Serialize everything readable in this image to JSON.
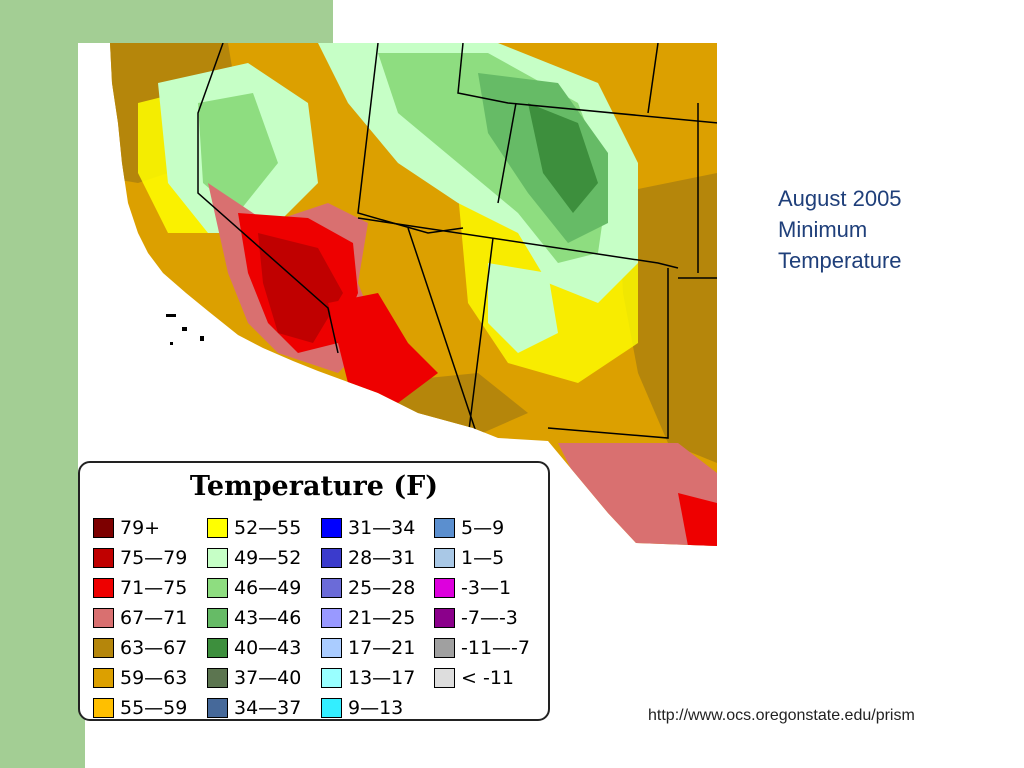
{
  "caption": {
    "line1": "August 2005",
    "line2": "Minimum",
    "line3": "Temperature"
  },
  "legend": {
    "title": "Temperature (F)",
    "columns": [
      [
        {
          "label": "79+",
          "color": "#7d0000"
        },
        {
          "label": "75—79",
          "color": "#c00000"
        },
        {
          "label": "71—75",
          "color": "#ee0000"
        },
        {
          "label": "67—71",
          "color": "#d97070"
        },
        {
          "label": "63—67",
          "color": "#b5860b"
        },
        {
          "label": "59—63",
          "color": "#dca000"
        },
        {
          "label": "55—59",
          "color": "#ffbf00"
        }
      ],
      [
        {
          "label": "52—55",
          "color": "#ffff00"
        },
        {
          "label": "49—52",
          "color": "#c6ffc6"
        },
        {
          "label": "46—49",
          "color": "#8edd80"
        },
        {
          "label": "43—46",
          "color": "#66bb66"
        },
        {
          "label": "40—43",
          "color": "#3d8f3d"
        },
        {
          "label": "37—40",
          "color": "#5c7550"
        },
        {
          "label": "34—37",
          "color": "#46699a"
        }
      ],
      [
        {
          "label": "31—34",
          "color": "#0000ff"
        },
        {
          "label": "28—31",
          "color": "#3b3bcc"
        },
        {
          "label": "25—28",
          "color": "#6b6bd8"
        },
        {
          "label": "21—25",
          "color": "#9999ff"
        },
        {
          "label": "17—21",
          "color": "#aaccff"
        },
        {
          "label": "13—17",
          "color": "#99ffff"
        },
        {
          "label": "9—13",
          "color": "#33eeff"
        }
      ],
      [
        {
          "label": "5—9",
          "color": "#5b8fcf"
        },
        {
          "label": "1—5",
          "color": "#a9c8e6"
        },
        {
          "label": "-3—1",
          "color": "#dd00dd"
        },
        {
          "label": "-7—-3",
          "color": "#8b008b"
        },
        {
          "label": "-11—-7",
          "color": "#a0a0a0"
        },
        {
          "label": "< -11",
          "color": "#dddddd"
        }
      ]
    ]
  },
  "source_url": "http://www.ocs.oregonstate.edu/prism"
}
